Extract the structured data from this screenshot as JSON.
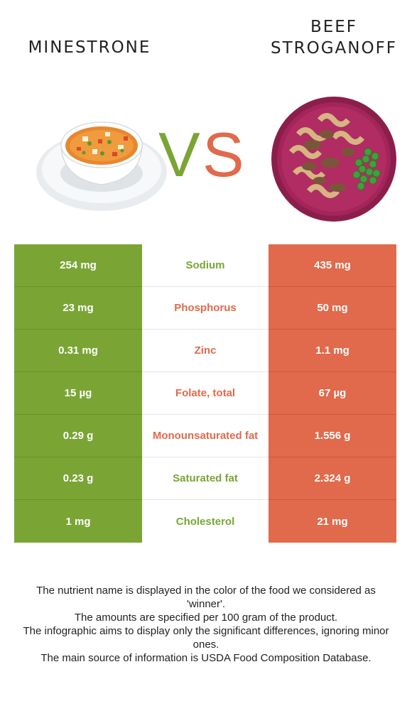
{
  "header": {
    "left_title": "MINESTRONE",
    "right_title_line1": "BEEF",
    "right_title_line2": "STROGANOFF",
    "vs_text": "VS"
  },
  "colors": {
    "left_food": "#7aa535",
    "right_food": "#e06a4b"
  },
  "images": {
    "left": "minestrone-soup-bowl-image",
    "right": "beef-stroganoff-plate-image"
  },
  "rows": [
    {
      "left": "254 mg",
      "nutrient": "Sodium",
      "right": "435 mg",
      "winner": "left"
    },
    {
      "left": "23 mg",
      "nutrient": "Phosphorus",
      "right": "50 mg",
      "winner": "right"
    },
    {
      "left": "0.31 mg",
      "nutrient": "Zinc",
      "right": "1.1 mg",
      "winner": "right"
    },
    {
      "left": "15 µg",
      "nutrient": "Folate, total",
      "right": "67 µg",
      "winner": "right"
    },
    {
      "left": "0.29 g",
      "nutrient": "Monounsaturated fat",
      "right": "1.556 g",
      "winner": "right"
    },
    {
      "left": "0.23 g",
      "nutrient": "Saturated fat",
      "right": "2.324 g",
      "winner": "left"
    },
    {
      "left": "1 mg",
      "nutrient": "Cholesterol",
      "right": "21 mg",
      "winner": "left"
    }
  ],
  "footer": {
    "line1": "The nutrient name is displayed in the color of the food we considered as 'winner'.",
    "line2": "The amounts are specified per 100 gram of the product.",
    "line3": "The infographic aims to display only the significant differences, ignoring minor ones.",
    "line4": "The main source of information is USDA Food Composition Database."
  }
}
